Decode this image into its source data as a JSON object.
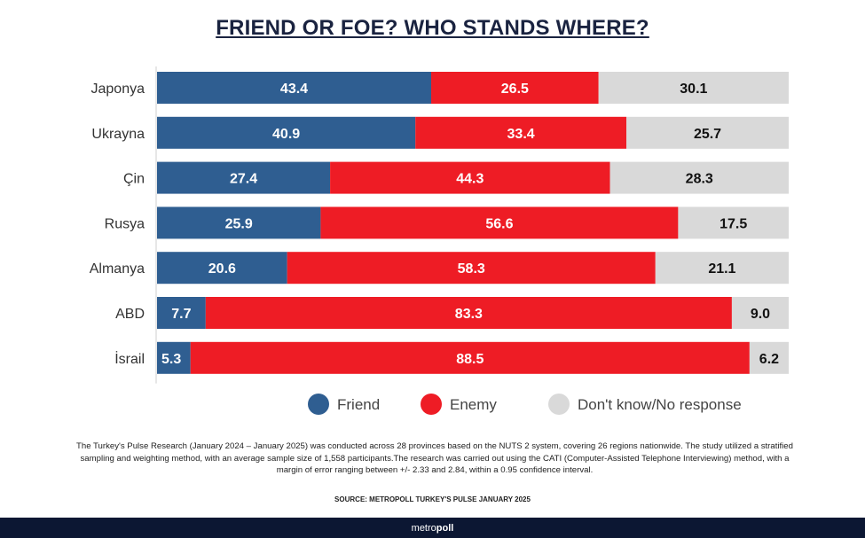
{
  "chart_data": {
    "type": "bar",
    "orientation": "horizontal",
    "stacked": true,
    "title": "FRIEND OR FOE? WHO STANDS WHERE?",
    "categories": [
      "Japonya",
      "Ukrayna",
      "Çin",
      "Rusya",
      "Almanya",
      "ABD",
      "İsrail"
    ],
    "series": [
      {
        "name": "Friend",
        "color": "#2f5e91",
        "label_color": "#ffffff",
        "values": [
          43.4,
          40.9,
          27.4,
          25.9,
          20.6,
          7.7,
          5.3
        ]
      },
      {
        "name": "Enemy",
        "color": "#ee1c25",
        "label_color": "#ffffff",
        "values": [
          26.5,
          33.4,
          44.3,
          56.6,
          58.3,
          83.3,
          88.5
        ]
      },
      {
        "name": "Don't know/No response",
        "color": "#d9d9d9",
        "label_color": "#111111",
        "values": [
          30.1,
          25.7,
          28.3,
          17.5,
          21.1,
          9.0,
          6.2
        ]
      }
    ],
    "value_labels": [
      [
        "43.4",
        "40.9",
        "27.4",
        "25.9",
        "20.6",
        "7.7",
        "5.3"
      ],
      [
        "26.5",
        "33.4",
        "44.3",
        "56.6",
        "58.3",
        "83.3",
        "88.5"
      ],
      [
        "30.1",
        "25.7",
        "28.3",
        "17.5",
        "21.1",
        "9.0",
        "6.2"
      ]
    ],
    "xlim": [
      0,
      100
    ],
    "legend_position": "bottom"
  },
  "footnote": "The Turkey's Pulse Research (January 2024 – January 2025) was conducted across 28 provinces based on the NUTS 2 system, covering 26 regions nationwide. The study utilized a stratified sampling and weighting method, with an average sample size of 1,558 participants.The research was carried out using the CATI (Computer-Assisted Telephone Interviewing) method, with a margin of error ranging between +/- 2.33 and 2.84, within a 0.95 confidence interval.",
  "source": "SOURCE: METROPOLL TURKEY'S PULSE JANUARY 2025",
  "brand": {
    "part1": "metro",
    "part2": "poll"
  }
}
